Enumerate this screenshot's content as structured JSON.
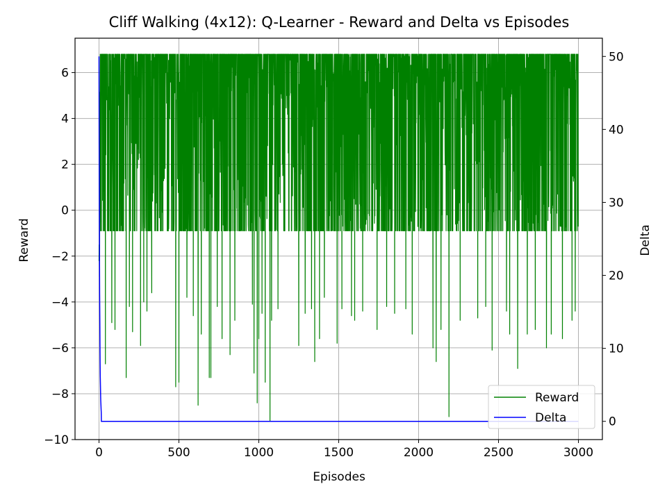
{
  "chart_data": {
    "type": "line",
    "title": "Cliff Walking (4x12): Q-Learner - Reward and Delta vs Episodes",
    "xlabel": "Episodes",
    "ylabel_left": "Reward",
    "ylabel_right": "Delta",
    "xlim": [
      -150,
      3150
    ],
    "ylim_left": [
      -10,
      7.5
    ],
    "ylim_right": [
      -2.5,
      52.5
    ],
    "x_ticks": [
      0,
      500,
      1000,
      1500,
      2000,
      2500,
      3000
    ],
    "y_ticks_left": [
      -10,
      -8,
      -6,
      -4,
      -2,
      0,
      2,
      4,
      6
    ],
    "y_ticks_right": [
      0,
      10,
      20,
      30,
      40,
      50
    ],
    "grid": true,
    "legend_position": "lower right",
    "series": [
      {
        "name": "Reward",
        "axis": "left",
        "color": "#008000",
        "episodes": 3000,
        "reward_max": 6.8,
        "reward_common_low": -0.9,
        "dips": [
          [
            40,
            -6.7
          ],
          [
            80,
            -4.9
          ],
          [
            100,
            -5.2
          ],
          [
            170,
            -7.3
          ],
          [
            190,
            -4.2
          ],
          [
            210,
            -5.3
          ],
          [
            260,
            -5.9
          ],
          [
            280,
            -4.0
          ],
          [
            300,
            -4.4
          ],
          [
            330,
            -3.6
          ],
          [
            480,
            -7.7
          ],
          [
            500,
            -7.5
          ],
          [
            550,
            -3.8
          ],
          [
            590,
            -4.6
          ],
          [
            620,
            -8.5
          ],
          [
            640,
            -5.4
          ],
          [
            690,
            -7.3
          ],
          [
            700,
            -7.3
          ],
          [
            740,
            -4.2
          ],
          [
            770,
            -5.6
          ],
          [
            820,
            -6.3
          ],
          [
            850,
            -4.8
          ],
          [
            960,
            -4.1
          ],
          [
            970,
            -7.1
          ],
          [
            990,
            -8.4
          ],
          [
            1000,
            -5.6
          ],
          [
            1020,
            -4.5
          ],
          [
            1040,
            -7.5
          ],
          [
            1070,
            -9.2
          ],
          [
            1080,
            -4.8
          ],
          [
            1120,
            -4.3
          ],
          [
            1250,
            -5.9
          ],
          [
            1290,
            -4.5
          ],
          [
            1330,
            -4.3
          ],
          [
            1350,
            -6.6
          ],
          [
            1380,
            -5.6
          ],
          [
            1410,
            -3.8
          ],
          [
            1490,
            -5.8
          ],
          [
            1520,
            -4.3
          ],
          [
            1580,
            -4.6
          ],
          [
            1600,
            -4.8
          ],
          [
            1650,
            -4.4
          ],
          [
            1740,
            -5.2
          ],
          [
            1800,
            -4.2
          ],
          [
            1850,
            -4.5
          ],
          [
            1920,
            -4.3
          ],
          [
            1960,
            -5.4
          ],
          [
            2090,
            -6.0
          ],
          [
            2110,
            -6.6
          ],
          [
            2140,
            -5.2
          ],
          [
            2190,
            -9.0
          ],
          [
            2260,
            -4.8
          ],
          [
            2370,
            -4.7
          ],
          [
            2420,
            -4.2
          ],
          [
            2460,
            -6.1
          ],
          [
            2550,
            -4.4
          ],
          [
            2570,
            -5.4
          ],
          [
            2620,
            -6.9
          ],
          [
            2680,
            -5.4
          ],
          [
            2730,
            -5.2
          ],
          [
            2800,
            -6.0
          ],
          [
            2830,
            -5.4
          ],
          [
            2900,
            -5.6
          ],
          [
            2960,
            -4.8
          ],
          [
            2980,
            -4.4
          ]
        ]
      },
      {
        "name": "Delta",
        "axis": "right",
        "color": "#0000ff",
        "initial": 50,
        "decay_episodes": 15,
        "final": 0
      }
    ]
  }
}
